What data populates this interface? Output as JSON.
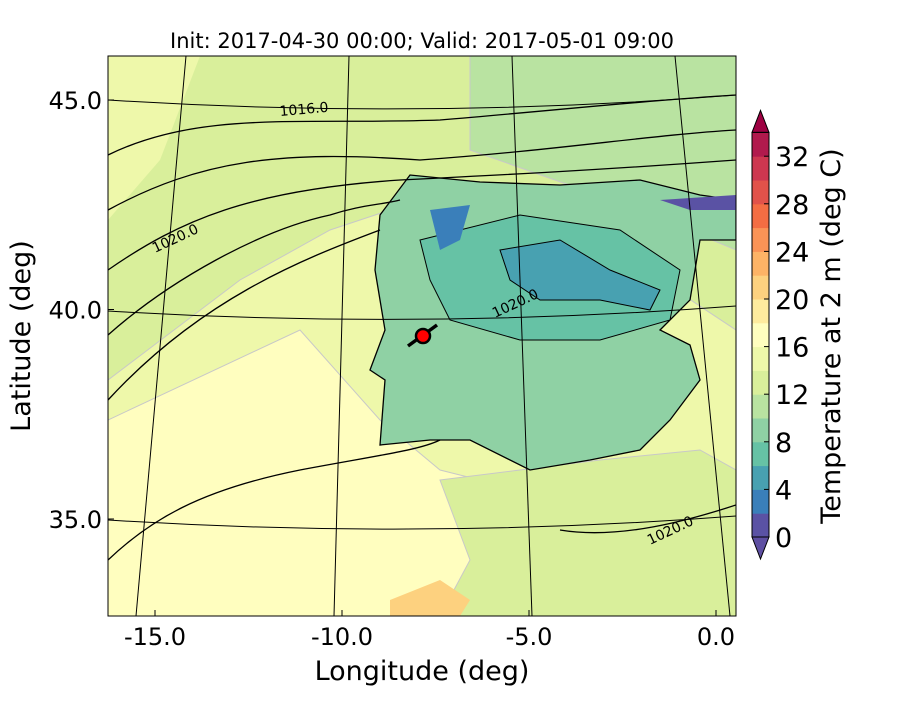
{
  "chart_data": {
    "type": "heatmap",
    "title": "Init: 2017-04-30 00:00; Valid: 2017-05-01 09:00",
    "xlabel": "Longitude (deg)",
    "ylabel": "Latitude (deg)",
    "xlim": [
      -15.8,
      0.9
    ],
    "ylim": [
      32.8,
      46.1
    ],
    "x_ticks": [
      -15,
      -10,
      -5,
      0
    ],
    "x_tick_labels": [
      "-15.0",
      "-10.0",
      "-5.0",
      "0.0"
    ],
    "y_ticks": [
      45,
      40,
      35
    ],
    "y_tick_labels": [
      "45.0",
      "40.0",
      "35.0"
    ],
    "colorbar": {
      "label": "Temperature at 2 m (deg C)",
      "levels": [
        0,
        2,
        4,
        6,
        8,
        10,
        12,
        14,
        16,
        18,
        20,
        22,
        24,
        26,
        28,
        30,
        32,
        34
      ],
      "tick_values": [
        0,
        4,
        8,
        12,
        16,
        20,
        24,
        28,
        32
      ],
      "tick_labels": [
        "0",
        "4",
        "8",
        "12",
        "16",
        "20",
        "24",
        "28",
        "32"
      ],
      "extend": "both",
      "colors": [
        "#5a52a4",
        "#3a7fba",
        "#48a1b1",
        "#66c2a5",
        "#8fd1a4",
        "#b9e3a1",
        "#d9ef9b",
        "#eef8aa",
        "#fffebf",
        "#feeb9e",
        "#fdd17f",
        "#fdb366",
        "#fa9356",
        "#f46d43",
        "#e1524a",
        "#cd3750",
        "#b11a4d"
      ],
      "under_color": "#5e4fa2",
      "over_color": "#9e0142"
    },
    "pressure_contour_labels": [
      "1016.0",
      "1020.0",
      "1020.0",
      "1020.0"
    ],
    "marker": {
      "lon": -7.6,
      "lat": 39.3,
      "color": "#ff0000"
    }
  }
}
